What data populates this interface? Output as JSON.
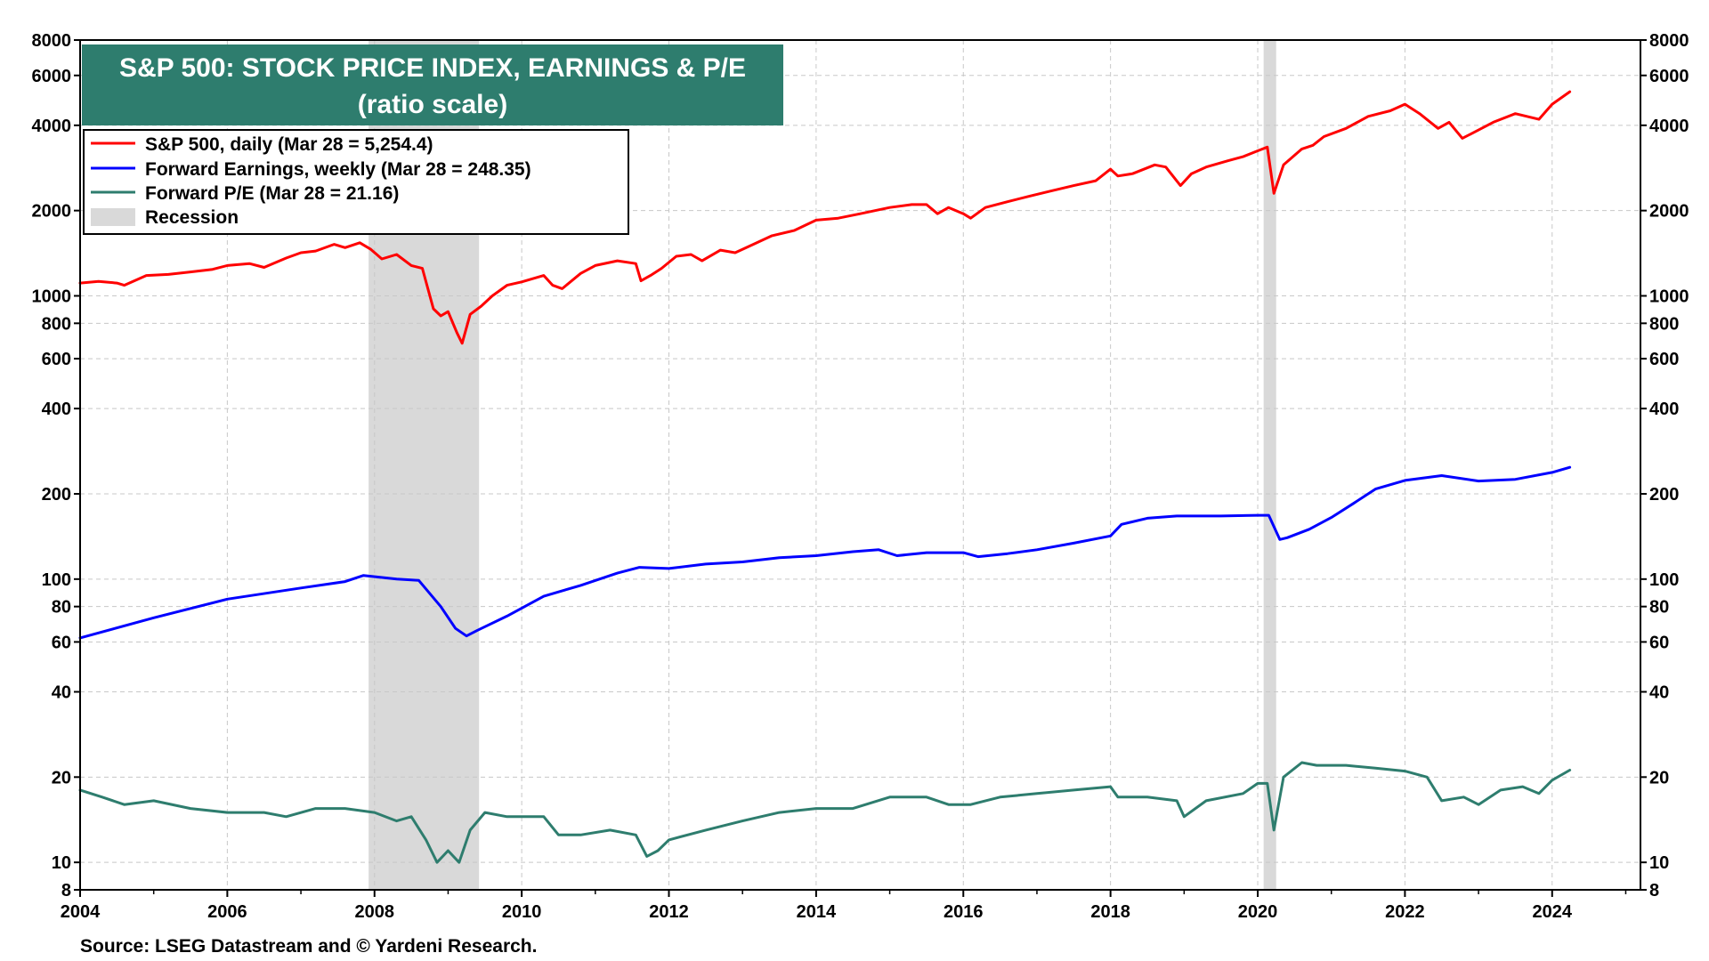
{
  "chart_data": {
    "type": "line",
    "title": "S&P 500: STOCK PRICE INDEX, EARNINGS & P/E",
    "subtitle": "(ratio scale)",
    "yscale": "log",
    "ylim": [
      8,
      8000
    ],
    "xlim": [
      2004,
      2025.2
    ],
    "y_ticks": [
      8,
      10,
      20,
      40,
      60,
      80,
      100,
      200,
      400,
      600,
      800,
      1000,
      2000,
      4000,
      6000,
      8000
    ],
    "y_tick_labels": [
      "8",
      "10",
      "20",
      "40",
      "60",
      "80",
      "100",
      "200",
      "400",
      "600",
      "800",
      "1000",
      "2000",
      "4000",
      "6000",
      "8000"
    ],
    "x_ticks": [
      2004,
      2006,
      2008,
      2010,
      2012,
      2014,
      2016,
      2018,
      2020,
      2022,
      2024
    ],
    "x_tick_labels": [
      "2004",
      "2006",
      "2008",
      "2010",
      "2012",
      "2014",
      "2016",
      "2018",
      "2020",
      "2022",
      "2024"
    ],
    "grid": true,
    "legend_position": "top-left",
    "recessions": [
      {
        "start": 2007.92,
        "end": 2009.42
      },
      {
        "start": 2020.08,
        "end": 2020.25
      }
    ],
    "series": [
      {
        "name": "S&P 500, daily (Mar 28 = 5,254.4)",
        "color": "#ff0000",
        "x": [
          2004.0,
          2004.25,
          2004.5,
          2004.6,
          2004.9,
          2005.2,
          2005.5,
          2005.8,
          2006.0,
          2006.3,
          2006.5,
          2006.8,
          2007.0,
          2007.2,
          2007.45,
          2007.6,
          2007.8,
          2007.95,
          2008.1,
          2008.3,
          2008.5,
          2008.65,
          2008.8,
          2008.9,
          2009.0,
          2009.12,
          2009.19,
          2009.3,
          2009.45,
          2009.6,
          2009.8,
          2010.0,
          2010.3,
          2010.42,
          2010.55,
          2010.8,
          2011.0,
          2011.3,
          2011.55,
          2011.62,
          2011.75,
          2011.9,
          2012.1,
          2012.3,
          2012.45,
          2012.7,
          2012.9,
          2013.1,
          2013.4,
          2013.7,
          2014.0,
          2014.3,
          2014.6,
          2014.8,
          2015.0,
          2015.3,
          2015.5,
          2015.65,
          2015.8,
          2016.0,
          2016.1,
          2016.3,
          2016.6,
          2016.9,
          2017.2,
          2017.5,
          2017.8,
          2018.0,
          2018.1,
          2018.3,
          2018.6,
          2018.75,
          2018.95,
          2019.1,
          2019.3,
          2019.4,
          2019.6,
          2019.8,
          2020.0,
          2020.13,
          2020.22,
          2020.35,
          2020.6,
          2020.75,
          2020.9,
          2021.2,
          2021.5,
          2021.8,
          2022.0,
          2022.2,
          2022.45,
          2022.6,
          2022.78,
          2023.0,
          2023.2,
          2023.5,
          2023.82,
          2024.0,
          2024.24
        ],
        "values": [
          1110,
          1125,
          1110,
          1090,
          1180,
          1190,
          1215,
          1240,
          1280,
          1300,
          1260,
          1360,
          1420,
          1440,
          1520,
          1480,
          1540,
          1460,
          1350,
          1400,
          1280,
          1250,
          900,
          850,
          880,
          740,
          680,
          860,
          920,
          1000,
          1090,
          1120,
          1180,
          1090,
          1060,
          1200,
          1280,
          1330,
          1300,
          1130,
          1180,
          1250,
          1380,
          1400,
          1330,
          1450,
          1420,
          1500,
          1630,
          1700,
          1850,
          1880,
          1950,
          2000,
          2050,
          2100,
          2100,
          1950,
          2050,
          1950,
          1880,
          2050,
          2150,
          2250,
          2350,
          2450,
          2550,
          2800,
          2650,
          2700,
          2900,
          2850,
          2450,
          2700,
          2850,
          2900,
          3000,
          3100,
          3250,
          3350,
          2300,
          2900,
          3300,
          3400,
          3650,
          3900,
          4300,
          4500,
          4750,
          4400,
          3900,
          4100,
          3600,
          3850,
          4100,
          4400,
          4200,
          4750,
          5254
        ]
      },
      {
        "name": "Forward Earnings, weekly (Mar 28 = 248.35)",
        "color": "#0000ff",
        "x": [
          2004.0,
          2005.0,
          2006.0,
          2007.0,
          2007.6,
          2007.85,
          2008.3,
          2008.6,
          2008.9,
          2009.1,
          2009.25,
          2009.4,
          2009.8,
          2010.3,
          2010.8,
          2011.3,
          2011.6,
          2012.0,
          2012.5,
          2013.0,
          2013.5,
          2014.0,
          2014.5,
          2014.85,
          2015.1,
          2015.5,
          2016.0,
          2016.2,
          2016.6,
          2017.0,
          2017.5,
          2018.0,
          2018.15,
          2018.5,
          2018.9,
          2019.5,
          2020.0,
          2020.15,
          2020.3,
          2020.4,
          2020.7,
          2021.0,
          2021.3,
          2021.6,
          2022.0,
          2022.5,
          2023.0,
          2023.5,
          2024.0,
          2024.24
        ],
        "values": [
          62,
          73,
          85,
          93,
          98,
          103,
          100,
          99,
          80,
          67,
          63,
          66,
          74,
          87,
          95,
          105,
          110,
          109,
          113,
          115,
          119,
          121,
          125,
          127,
          121,
          124,
          124,
          120,
          123,
          127,
          134,
          142,
          156,
          164,
          167,
          167,
          168,
          168,
          138,
          140,
          150,
          165,
          185,
          208,
          223,
          232,
          222,
          225,
          238,
          248
        ]
      },
      {
        "name": "Forward P/E (Mar 28 = 21.16)",
        "color": "#2e7d6e",
        "x": [
          2004.0,
          2004.3,
          2004.6,
          2005.0,
          2005.5,
          2006.0,
          2006.5,
          2006.8,
          2007.2,
          2007.6,
          2008.0,
          2008.3,
          2008.5,
          2008.7,
          2008.85,
          2009.0,
          2009.15,
          2009.3,
          2009.5,
          2009.8,
          2010.0,
          2010.3,
          2010.5,
          2010.8,
          2011.2,
          2011.55,
          2011.7,
          2011.85,
          2012.0,
          2012.5,
          2013.0,
          2013.5,
          2014.0,
          2014.5,
          2015.0,
          2015.5,
          2015.8,
          2016.1,
          2016.5,
          2017.0,
          2017.5,
          2018.0,
          2018.1,
          2018.5,
          2018.9,
          2019.0,
          2019.3,
          2019.8,
          2020.0,
          2020.13,
          2020.22,
          2020.35,
          2020.6,
          2020.8,
          2021.2,
          2021.6,
          2022.0,
          2022.3,
          2022.5,
          2022.8,
          2023.0,
          2023.3,
          2023.6,
          2023.82,
          2024.0,
          2024.24
        ],
        "values": [
          18,
          17,
          16,
          16.5,
          15.5,
          15,
          15,
          14.5,
          15.5,
          15.5,
          15,
          14,
          14.5,
          12,
          10,
          11,
          10,
          13,
          15,
          14.5,
          14.5,
          14.5,
          12.5,
          12.5,
          13,
          12.5,
          10.5,
          11,
          12,
          13,
          14,
          15,
          15.5,
          15.5,
          17,
          17,
          16,
          16,
          17,
          17.5,
          18,
          18.5,
          17,
          17,
          16.5,
          14.5,
          16.5,
          17.5,
          19,
          19,
          13,
          20,
          22.5,
          22,
          22,
          21.5,
          21,
          20,
          16.5,
          17,
          16,
          18,
          18.5,
          17.5,
          19.5,
          21.16
        ]
      }
    ],
    "legend": [
      {
        "label": "S&P 500, daily (Mar 28 = 5,254.4)",
        "kind": "line",
        "color": "#ff0000"
      },
      {
        "label": "Forward Earnings, weekly (Mar 28 = 248.35)",
        "kind": "line",
        "color": "#0000ff"
      },
      {
        "label": "Forward P/E (Mar 28 = 21.16)",
        "kind": "line",
        "color": "#2e7d6e"
      },
      {
        "label": "Recession",
        "kind": "box",
        "color": "#d9d9d9"
      }
    ],
    "source": "Source: LSEG Datastream and © Yardeni Research."
  },
  "colors": {
    "title_bg": "#2e7d6e",
    "grid": "#c8c8c8",
    "recession": "#d9d9d9"
  }
}
